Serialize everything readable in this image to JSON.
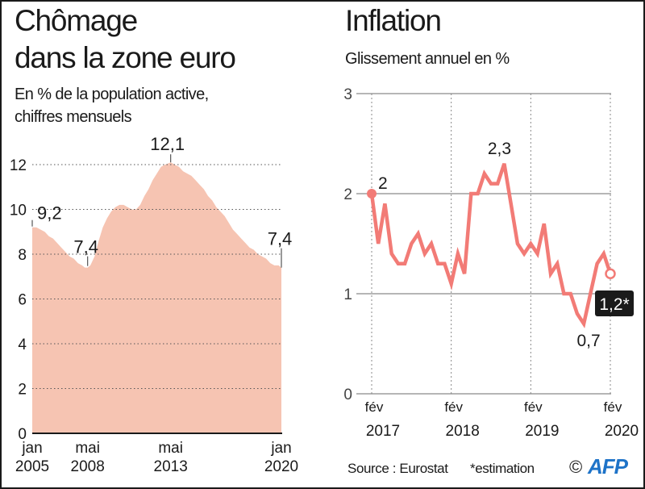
{
  "left": {
    "title_line1": "Chômage",
    "title_line2": "dans la zone euro",
    "subtitle_line1": "En % de la population active,",
    "subtitle_line2": "chiffres mensuels"
  },
  "right": {
    "title": "Inflation",
    "subtitle": "Glissement annuel en %"
  },
  "footer": {
    "source": "Source : Eurostat",
    "note": "*estimation",
    "copyright": "©",
    "brand": "AFP",
    "brand_color": "#1e73c8"
  },
  "colors": {
    "area_fill": "#f6c4b2",
    "line": "#f27b76",
    "badge_bg": "#1a1a1a"
  },
  "chart_data": [
    {
      "type": "area",
      "title": "Chômage dans la zone euro",
      "subtitle": "En % de la population active, chiffres mensuels",
      "xlabel": "",
      "ylabel": "",
      "ylim": [
        0,
        12.5
      ],
      "yticks": [
        0,
        2,
        4,
        6,
        8,
        10,
        12
      ],
      "ytick_labels": [
        "0",
        "2",
        "4",
        "6",
        "8",
        "10",
        "12"
      ],
      "xticks": [
        {
          "month": 0,
          "label1": "jan",
          "label2": "2005"
        },
        {
          "month": 40,
          "label1": "mai",
          "label2": "2008"
        },
        {
          "month": 100,
          "label1": "mai",
          "label2": "2013"
        },
        {
          "month": 180,
          "label1": "jan",
          "label2": "2020"
        }
      ],
      "grid": "horizontal-dotted",
      "x_unit": "months since jan 2005",
      "points": [
        [
          0,
          9.2
        ],
        [
          3,
          9.2
        ],
        [
          6,
          9.1
        ],
        [
          9,
          9.0
        ],
        [
          12,
          8.8
        ],
        [
          15,
          8.7
        ],
        [
          18,
          8.5
        ],
        [
          21,
          8.3
        ],
        [
          24,
          8.1
        ],
        [
          27,
          7.9
        ],
        [
          30,
          7.8
        ],
        [
          33,
          7.6
        ],
        [
          36,
          7.5
        ],
        [
          38,
          7.4
        ],
        [
          40,
          7.4
        ],
        [
          42,
          7.5
        ],
        [
          45,
          7.9
        ],
        [
          48,
          8.6
        ],
        [
          51,
          9.2
        ],
        [
          54,
          9.6
        ],
        [
          57,
          9.9
        ],
        [
          60,
          10.1
        ],
        [
          63,
          10.2
        ],
        [
          66,
          10.2
        ],
        [
          69,
          10.1
        ],
        [
          72,
          10.0
        ],
        [
          75,
          10.0
        ],
        [
          78,
          10.2
        ],
        [
          81,
          10.6
        ],
        [
          84,
          10.9
        ],
        [
          87,
          11.3
        ],
        [
          90,
          11.6
        ],
        [
          93,
          11.9
        ],
        [
          96,
          12.0
        ],
        [
          100,
          12.1
        ],
        [
          103,
          12.0
        ],
        [
          106,
          11.9
        ],
        [
          109,
          11.7
        ],
        [
          112,
          11.6
        ],
        [
          115,
          11.5
        ],
        [
          118,
          11.3
        ],
        [
          121,
          11.1
        ],
        [
          124,
          10.9
        ],
        [
          127,
          10.6
        ],
        [
          130,
          10.4
        ],
        [
          133,
          10.1
        ],
        [
          136,
          9.9
        ],
        [
          139,
          9.7
        ],
        [
          142,
          9.4
        ],
        [
          145,
          9.1
        ],
        [
          148,
          8.9
        ],
        [
          151,
          8.7
        ],
        [
          154,
          8.5
        ],
        [
          157,
          8.3
        ],
        [
          160,
          8.2
        ],
        [
          163,
          8.0
        ],
        [
          166,
          7.9
        ],
        [
          169,
          7.8
        ],
        [
          172,
          7.6
        ],
        [
          175,
          7.5
        ],
        [
          178,
          7.5
        ],
        [
          180,
          7.4
        ]
      ],
      "annotations": [
        {
          "month": 0,
          "value": 9.2,
          "label": "9,2"
        },
        {
          "month": 40,
          "value": 7.4,
          "label": "7,4"
        },
        {
          "month": 100,
          "value": 12.1,
          "label": "12,1"
        },
        {
          "month": 180,
          "value": 7.4,
          "label": "7,4"
        }
      ]
    },
    {
      "type": "line",
      "title": "Inflation",
      "subtitle": "Glissement annuel en %",
      "xlabel": "",
      "ylabel": "",
      "ylim": [
        0,
        3
      ],
      "yticks": [
        0,
        1,
        2,
        3
      ],
      "ytick_labels": [
        "0",
        "1",
        "2",
        "3"
      ],
      "xticks": [
        {
          "month": 0,
          "label1": "fév",
          "label2": "2017"
        },
        {
          "month": 12,
          "label1": "fév",
          "label2": "2018"
        },
        {
          "month": 24,
          "label1": "fév",
          "label2": "2019"
        },
        {
          "month": 36,
          "label1": "fév",
          "label2": "2020"
        }
      ],
      "grid": "horizontal-solid, vertical-dotted",
      "x_unit": "months since fév 2017",
      "values": [
        2.0,
        1.5,
        1.9,
        1.4,
        1.3,
        1.3,
        1.5,
        1.6,
        1.4,
        1.5,
        1.3,
        1.3,
        1.1,
        1.4,
        1.2,
        2.0,
        2.0,
        2.2,
        2.1,
        2.1,
        2.3,
        1.9,
        1.5,
        1.4,
        1.5,
        1.4,
        1.7,
        1.2,
        1.3,
        1.0,
        1.0,
        0.8,
        0.7,
        1.0,
        1.3,
        1.4,
        1.2
      ],
      "annotations": [
        {
          "month": 0,
          "value": 2.0,
          "label": "2"
        },
        {
          "month": 20,
          "value": 2.3,
          "label": "2,3"
        },
        {
          "month": 32,
          "value": 0.7,
          "label": "0,7"
        },
        {
          "month": 36,
          "value": 1.2,
          "label": "1,2*",
          "style": "badge"
        }
      ]
    }
  ]
}
